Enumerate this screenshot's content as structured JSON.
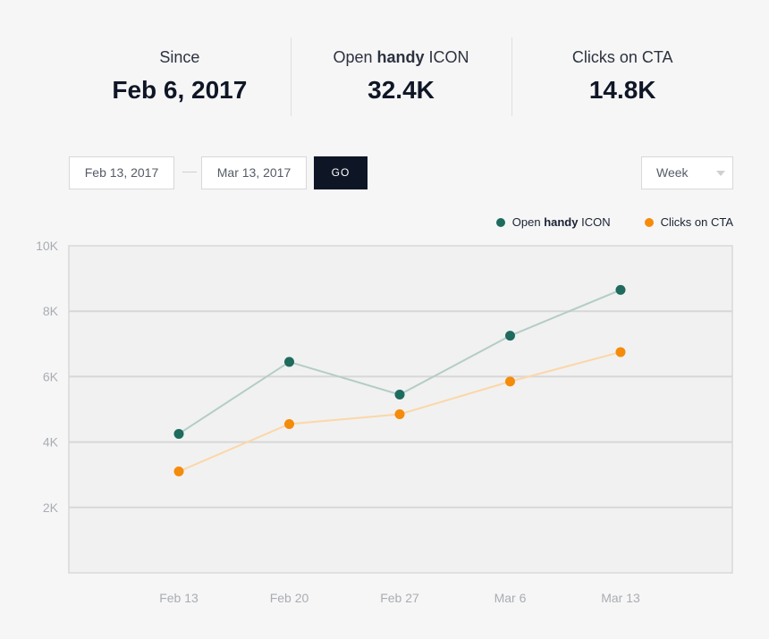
{
  "stats": [
    {
      "label_pre": "Since",
      "label_bold": "",
      "label_post": "",
      "value": "Feb 6, 2017"
    },
    {
      "label_pre": "Open ",
      "label_bold": "handy",
      "label_post": " ICON",
      "value": "32.4K"
    },
    {
      "label_pre": "Clicks on CTA",
      "label_bold": "",
      "label_post": "",
      "value": "14.8K"
    }
  ],
  "controls": {
    "date_from": "Feb 13, 2017",
    "date_to": "Mar 13, 2017",
    "go_label": "GO",
    "period": "Week"
  },
  "legend": [
    {
      "pre": "Open ",
      "bold": "handy",
      "post": " ICON",
      "color": "#1f6b5e"
    },
    {
      "pre": "Clicks on CTA",
      "bold": "",
      "post": "",
      "color": "#f58b0a"
    }
  ],
  "chart_data": {
    "type": "line",
    "title": "",
    "xlabel": "",
    "ylabel": "",
    "categories": [
      "Feb 13",
      "Feb 20",
      "Feb 27",
      "Mar 6",
      "Mar 13"
    ],
    "y_ticks": [
      "10K",
      "8K",
      "6K",
      "4K",
      "2K"
    ],
    "y_tick_values": [
      10000,
      8000,
      6000,
      4000,
      2000
    ],
    "ylim": [
      0,
      10000
    ],
    "grid": true,
    "legend_position": "top-right",
    "series": [
      {
        "name": "Open handy ICON",
        "values": [
          4250,
          6450,
          5450,
          7250,
          8650
        ],
        "color": "#1f6b5e",
        "line_color": "#b3cdc5"
      },
      {
        "name": "Clicks on CTA",
        "values": [
          3100,
          4550,
          4850,
          5850,
          6750
        ],
        "color": "#f58b0a",
        "line_color": "#fbd7a8"
      }
    ]
  }
}
